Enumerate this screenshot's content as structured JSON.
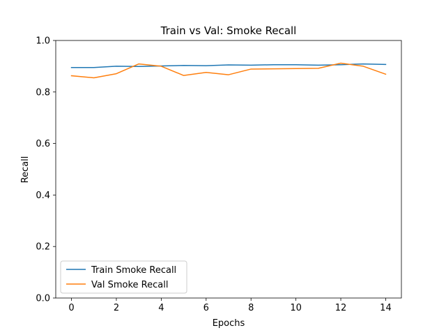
{
  "chart_data": {
    "type": "line",
    "title": "Train vs Val: Smoke Recall",
    "xlabel": "Epochs",
    "ylabel": "Recall",
    "xlim": [
      -0.7,
      14.7
    ],
    "ylim": [
      0.0,
      1.0
    ],
    "xticks": [
      0,
      2,
      4,
      6,
      8,
      10,
      12,
      14
    ],
    "yticks": [
      0.0,
      0.2,
      0.4,
      0.6,
      0.8,
      1.0
    ],
    "grid": false,
    "legend_position": "lower-left",
    "x": [
      0,
      1,
      2,
      3,
      4,
      5,
      6,
      7,
      8,
      9,
      10,
      11,
      12,
      13,
      14
    ],
    "series": [
      {
        "name": "Train Smoke Recall",
        "color": "#1f77b4",
        "values": [
          0.895,
          0.895,
          0.9,
          0.899,
          0.901,
          0.903,
          0.902,
          0.905,
          0.904,
          0.906,
          0.906,
          0.904,
          0.906,
          0.909,
          0.907
        ]
      },
      {
        "name": "Val Smoke Recall",
        "color": "#ff7f0e",
        "values": [
          0.863,
          0.855,
          0.871,
          0.909,
          0.9,
          0.864,
          0.876,
          0.867,
          0.889,
          0.89,
          0.891,
          0.892,
          0.912,
          0.9,
          0.869
        ]
      }
    ]
  }
}
